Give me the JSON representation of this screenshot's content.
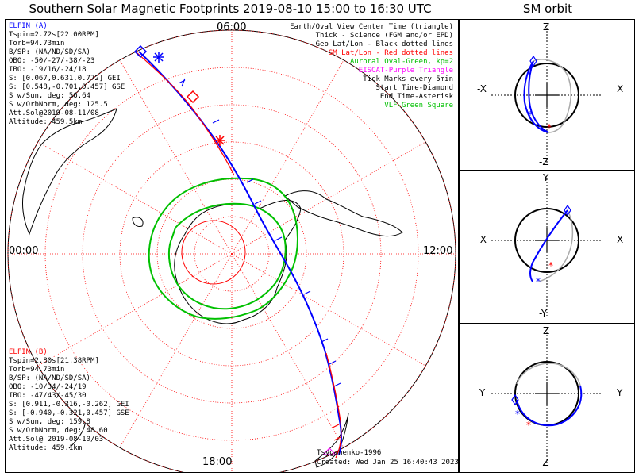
{
  "title": "Southern Solar Magnetic Footprints 2019-08-10 15:00 to 16:30 UTC",
  "orbit_title": "SM orbit",
  "clock": {
    "top": "06:00",
    "bottom": "18:00",
    "left": "00:00",
    "right": "12:00"
  },
  "legend": [
    {
      "text": "Earth/Oval View Center Time (triangle)",
      "color": "#000000"
    },
    {
      "text": "Thick - Science (FGM and/or EPD)",
      "color": "#000000"
    },
    {
      "text": "Geo Lat/Lon - Black dotted lines",
      "color": "#000000"
    },
    {
      "text": "SM Lat/Lon - Red dotted lines",
      "color": "#ff0000"
    },
    {
      "text": "Auroral Oval-Green, kp=2",
      "color": "#00c000"
    },
    {
      "text": "EISCAT-Purple Triangle",
      "color": "#ff00ff"
    },
    {
      "text": "Tick Marks every 5min",
      "color": "#000000"
    },
    {
      "text": "Start Time-Diamond",
      "color": "#000000"
    },
    {
      "text": "End Time-Asterisk",
      "color": "#000000"
    },
    {
      "text": "VLF-Green Square",
      "color": "#00c000"
    }
  ],
  "elfin_a": {
    "name": "ELFIN (A)",
    "color": "#0000ff",
    "lines": [
      "Tspin=2.72s[22.00RPM]",
      "Torb=94.73min",
      "B/SP: (NA/ND/SD/SA)",
      "OBO: -50/-27/-38/-23",
      "IBO: -19/16/-24/18",
      "S: [0.067,0.631,0.772] GEI",
      "S: [0.548,-0.701,0.457] GSE",
      "S w/Sun, deg: 56.64",
      "S w/OrbNorm, deg: 125.5",
      "Att.Sol@2019-08-11/08",
      "Altitude: 459.5km"
    ]
  },
  "elfin_b": {
    "name": "ELFIN (B)",
    "color": "#ff0000",
    "lines": [
      "Tspin=2.80s[21.38RPM]",
      "Torb=94.73min",
      "B/SP: (NA/ND/SD/SA)",
      "OBO: -10/34/-24/19",
      "IBO: -47/43/-45/30",
      "S: [0.911,-0.316,-0.262] GEI",
      "S: [-0.940,-0.321,0.457] GSE",
      "S w/Sun, deg: 159.8",
      "S w/OrbNorm, deg: 48.60",
      "Att.Sol@ 2019-08-10/03",
      "Altitude: 459.1km"
    ]
  },
  "footer": {
    "model": "Tsyganenko-1996",
    "created": "Created: Wed Jan 25 16:40:43 2023"
  },
  "orbit_panels": [
    {
      "top": "Z",
      "bottom": "-Z",
      "left": "-X",
      "right": "X"
    },
    {
      "top": "Y",
      "bottom": "-Y",
      "left": "-X",
      "right": "X"
    },
    {
      "top": "Z",
      "bottom": "-Z",
      "left": "-Y",
      "right": "Y"
    }
  ],
  "colors": {
    "elfin_a": "#0000ff",
    "elfin_b": "#ff0000",
    "oval": "#00c000",
    "sm_grid": "#ff0000",
    "geo_grid": "#000000"
  }
}
